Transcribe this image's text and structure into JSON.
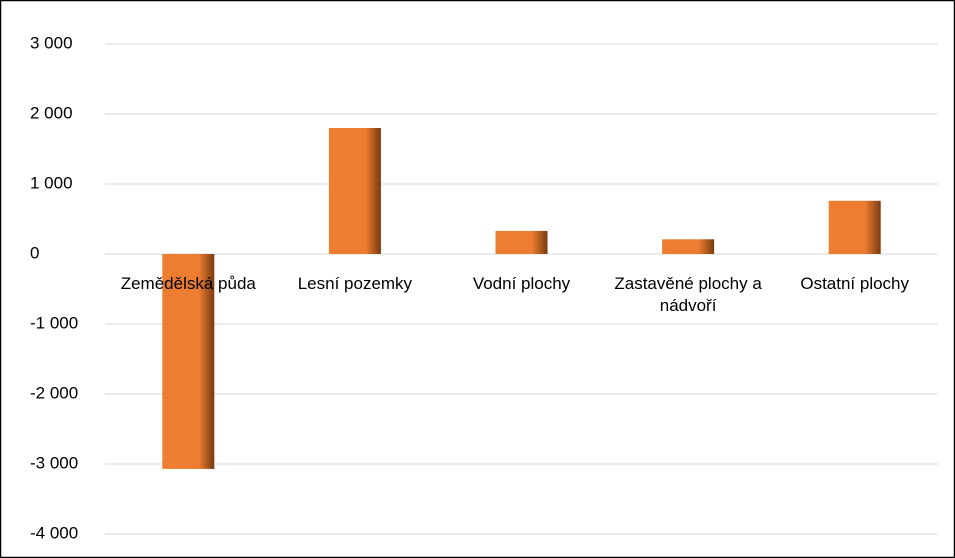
{
  "chart_data": {
    "type": "bar",
    "categories": [
      "Zemědělská půda",
      "Lesní pozemky",
      "Vodní plochy",
      "Zastavěné plochy a nádvoří",
      "Ostatní plochy"
    ],
    "values": [
      -3070,
      1800,
      330,
      210,
      760
    ],
    "color": "#ed7d31",
    "ylim": [
      -4000,
      3000
    ],
    "yticks": [
      {
        "value": -4000,
        "label": "-4 000"
      },
      {
        "value": -3000,
        "label": "-3 000"
      },
      {
        "value": -2000,
        "label": "-2 000"
      },
      {
        "value": -1000,
        "label": "-1 000"
      },
      0,
      {
        "value": 1000,
        "label": "1 000"
      },
      {
        "value": 2000,
        "label": "2 000"
      },
      {
        "value": 3000,
        "label": "3 000"
      }
    ],
    "grid": true
  }
}
